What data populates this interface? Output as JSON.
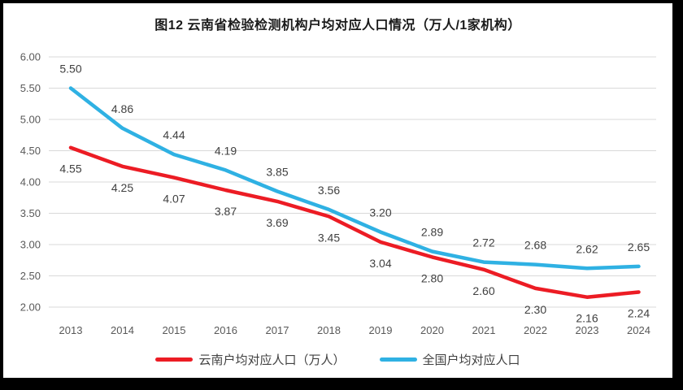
{
  "title": "图12  云南省检验检测机构户均对应人口情况（万人/1家机构）",
  "chart_data": {
    "type": "line",
    "categories": [
      "2013",
      "2014",
      "2015",
      "2016",
      "2017",
      "2018",
      "2019",
      "2020",
      "2021",
      "2022",
      "2023",
      "2024"
    ],
    "series": [
      {
        "name": "云南户均对应人口（万人）",
        "key": "yunnan",
        "color": "#EC1C24",
        "values": [
          4.55,
          4.25,
          4.07,
          3.87,
          3.69,
          3.45,
          3.04,
          2.8,
          2.6,
          2.3,
          2.16,
          2.24
        ],
        "label_position": "below"
      },
      {
        "name": "全国户均对应人口",
        "key": "national",
        "color": "#2FB1E3",
        "values": [
          5.5,
          4.86,
          4.44,
          4.19,
          3.85,
          3.56,
          3.2,
          2.89,
          2.72,
          2.68,
          2.62,
          2.65
        ],
        "label_position": "above"
      }
    ],
    "title": "图12  云南省检验检测机构户均对应人口情况（万人/1家机构）",
    "xlabel": "",
    "ylabel": "",
    "ylim": [
      2.0,
      6.0
    ],
    "ytick_step": 0.5,
    "ytick_labels": [
      "2.00",
      "2.50",
      "3.00",
      "3.50",
      "4.00",
      "4.50",
      "5.00",
      "5.50",
      "6.00"
    ],
    "grid": true,
    "gridline_color": "#D9D9D9",
    "tick_label_color": "#595959",
    "data_label_color": "#404040",
    "legend_position": "bottom"
  },
  "legend": {
    "items": [
      {
        "label": "云南户均对应人口（万人）",
        "color": "#EC1C24"
      },
      {
        "label": "全国户均对应人口",
        "color": "#2FB1E3"
      }
    ]
  }
}
